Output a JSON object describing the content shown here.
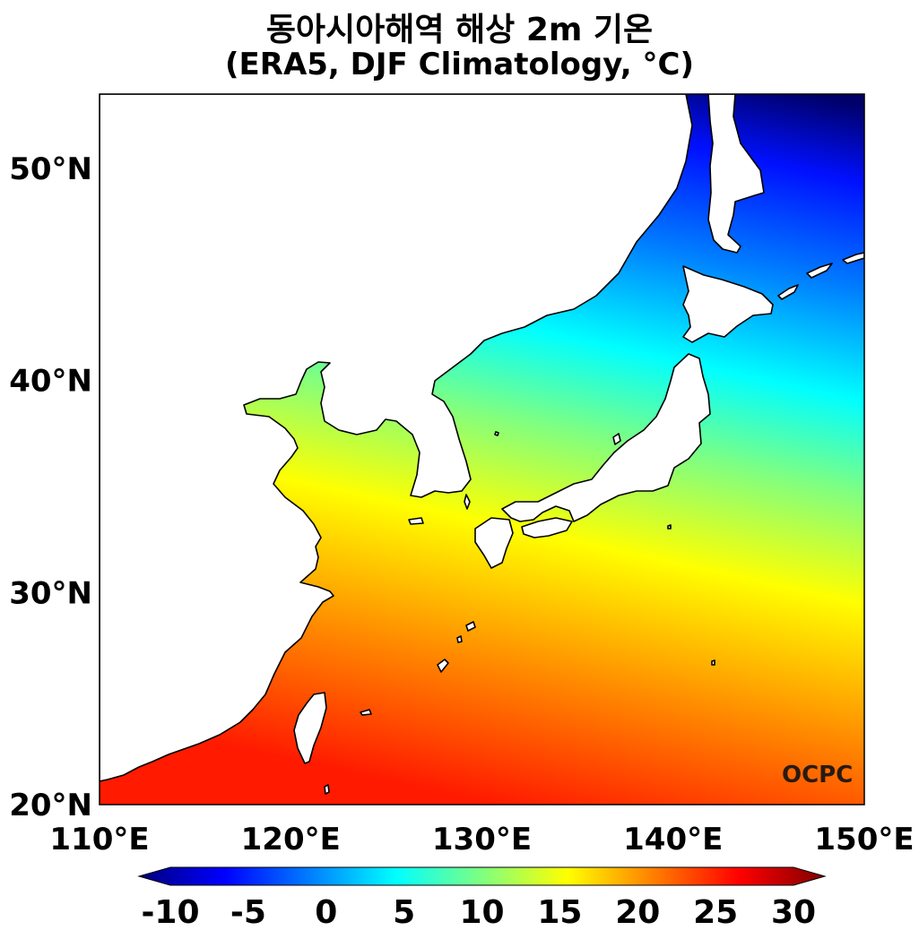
{
  "title": {
    "line1": "동아시아해역 해상 2m 기온",
    "line2": "(ERA5, DJF Climatology, °C)"
  },
  "map": {
    "lon_range": [
      110,
      150
    ],
    "lat_range": [
      20,
      53.5
    ],
    "lon_ticks": [
      "110°E",
      "120°E",
      "130°E",
      "140°E",
      "150°E"
    ],
    "lat_ticks": [
      "20°N",
      "30°N",
      "40°N",
      "50°N"
    ],
    "watermark": "OCPC"
  },
  "colorbar": {
    "min": -10,
    "max": 30,
    "ticks": [
      "-10",
      "-5",
      "0",
      "5",
      "10",
      "15",
      "20",
      "25",
      "30"
    ],
    "extend": "both",
    "colormap": "jet",
    "colors": [
      "#00007f",
      "#0000ff",
      "#007fff",
      "#00ffff",
      "#7fff7f",
      "#ffff00",
      "#ff7f00",
      "#ff0000",
      "#7f0000"
    ]
  }
}
